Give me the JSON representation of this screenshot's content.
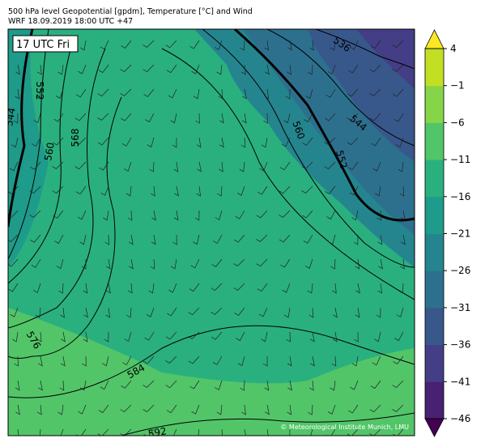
{
  "header": {
    "title": "500 hPa level Geopotential [gpdm], Temperature [°C] and Wind",
    "subtitle": "WRF 18.09.2019 18:00 UTC +47"
  },
  "map": {
    "time_label": "17 UTC Fri",
    "contour_labels": [
      536,
      544,
      560,
      552,
      552,
      544,
      560,
      568,
      576,
      584,
      592
    ],
    "credit": "© Meteorological Institute Munich, LMU"
  },
  "colorbar": {
    "range": [
      -46,
      4
    ],
    "ticks": [
      {
        "value": 4,
        "label": "4"
      },
      {
        "value": -1,
        "label": "−1"
      },
      {
        "value": -6,
        "label": "−6"
      },
      {
        "value": -11,
        "label": "−11"
      },
      {
        "value": -16,
        "label": "−16"
      },
      {
        "value": -21,
        "label": "−21"
      },
      {
        "value": -26,
        "label": "−26"
      },
      {
        "value": -31,
        "label": "−31"
      },
      {
        "value": -36,
        "label": "−36"
      },
      {
        "value": -41,
        "label": "−41"
      },
      {
        "value": -46,
        "label": "−46"
      }
    ],
    "under_color": "#440154",
    "over_color": "#fde725",
    "colors": [
      "#482173",
      "#433e85",
      "#38588c",
      "#2d708e",
      "#25858e",
      "#1e9b8a",
      "#2ab07f",
      "#52c569",
      "#86d549",
      "#c2df23"
    ]
  }
}
